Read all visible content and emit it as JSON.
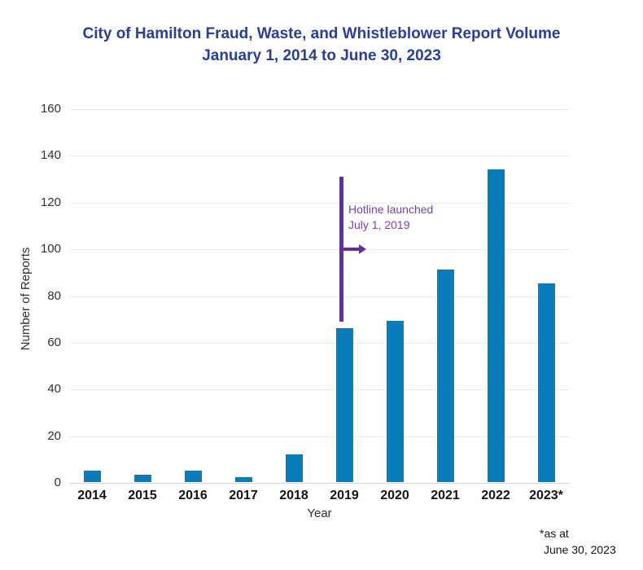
{
  "title": {
    "line1": "City of Hamilton Fraud, Waste, and Whistleblower Report Volume",
    "line2": "January 1, 2014 to June 30, 2023"
  },
  "chart_data": {
    "type": "bar",
    "title": "City of Hamilton Fraud, Waste, and Whistleblower Report Volume",
    "subtitle": "January 1, 2014 to June 30, 2023",
    "categories": [
      "2014",
      "2015",
      "2016",
      "2017",
      "2018",
      "2019",
      "2020",
      "2021",
      "2022",
      "2023*"
    ],
    "values": [
      5,
      3,
      5,
      2,
      12,
      66,
      69,
      91,
      134,
      85
    ],
    "xlabel": "Year",
    "ylabel": "Number of Reports",
    "ylim": [
      0,
      160
    ],
    "yticks": [
      0,
      20,
      40,
      60,
      80,
      100,
      120,
      140,
      160
    ],
    "grid": "horizontal-light",
    "legend": "none",
    "bar_color": "#0a7cba",
    "annotation": {
      "text_line1": "Hotline launched",
      "text_line2": "July 1, 2019",
      "text_color": "#7c3fad",
      "line_color": "#6a2c9a",
      "x_category": "2019",
      "line_top_value": 131,
      "line_bottom_value": 69,
      "arrow_value": 100
    },
    "footnote_line1": "*as at",
    "footnote_line2": "June 30, 2023"
  },
  "colors": {
    "title_blue": "#2b3e97",
    "bar_blue": "#0a7cba",
    "annotation_purple": "#6a2c9a",
    "axis_text": "#303030"
  }
}
